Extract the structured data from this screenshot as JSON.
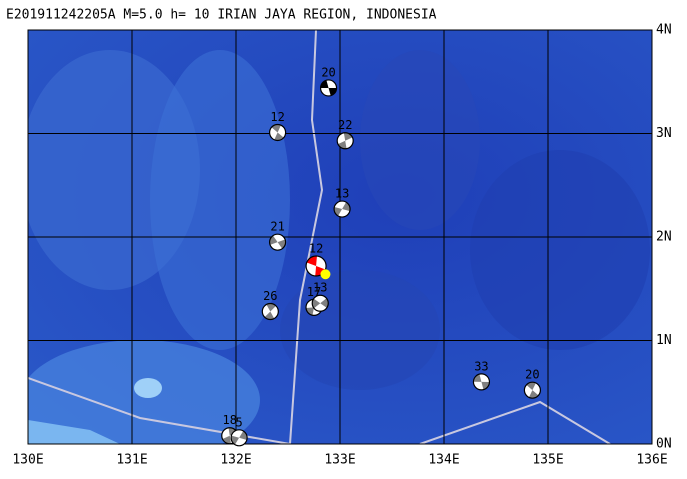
{
  "map": {
    "title": "E201911242205A M=5.0 h= 10 IRIAN JAYA REGION, INDONESIA",
    "xlim": [
      130,
      136
    ],
    "ylim": [
      0,
      4
    ],
    "xticks": [
      {
        "value": 130,
        "label": "130E"
      },
      {
        "value": 131,
        "label": "131E"
      },
      {
        "value": 132,
        "label": "132E"
      },
      {
        "value": 133,
        "label": "133E"
      },
      {
        "value": 134,
        "label": "134E"
      },
      {
        "value": 135,
        "label": "135E"
      },
      {
        "value": 136,
        "label": "136E"
      }
    ],
    "yticks": [
      {
        "value": 0,
        "label": "0N"
      },
      {
        "value": 1,
        "label": "1N"
      },
      {
        "value": 2,
        "label": "2N"
      },
      {
        "value": 3,
        "label": "3N"
      },
      {
        "value": 4,
        "label": "4N"
      }
    ],
    "grid": true,
    "events": [
      {
        "label": "20",
        "lon": 132.89,
        "lat": 3.44,
        "color": "#000000"
      },
      {
        "label": "12",
        "lon": 132.4,
        "lat": 3.01,
        "color": "#808080"
      },
      {
        "label": "22",
        "lon": 133.05,
        "lat": 2.93,
        "color": "#808080"
      },
      {
        "label": "13",
        "lon": 133.02,
        "lat": 2.27,
        "color": "#808080"
      },
      {
        "label": "21",
        "lon": 132.4,
        "lat": 1.95,
        "color": "#808080"
      },
      {
        "label": "12",
        "lon": 132.77,
        "lat": 1.72,
        "color": "#ff0000"
      },
      {
        "label": "26",
        "lon": 132.33,
        "lat": 1.28,
        "color": "#808080"
      },
      {
        "label": "17",
        "lon": 132.75,
        "lat": 1.32,
        "color": "#808080"
      },
      {
        "label": "13",
        "lon": 132.81,
        "lat": 1.36,
        "color": "#808080"
      },
      {
        "label": "33",
        "lon": 134.36,
        "lat": 0.6,
        "color": "#808080"
      },
      {
        "label": "20",
        "lon": 134.85,
        "lat": 0.52,
        "color": "#808080"
      },
      {
        "label": "18",
        "lon": 131.94,
        "lat": 0.08,
        "color": "#808080"
      },
      {
        "label": "5",
        "lon": 132.03,
        "lat": 0.06,
        "color": "#808080"
      }
    ],
    "epicenter": {
      "lon": 132.86,
      "lat": 1.64,
      "color": "#ffff00"
    }
  }
}
